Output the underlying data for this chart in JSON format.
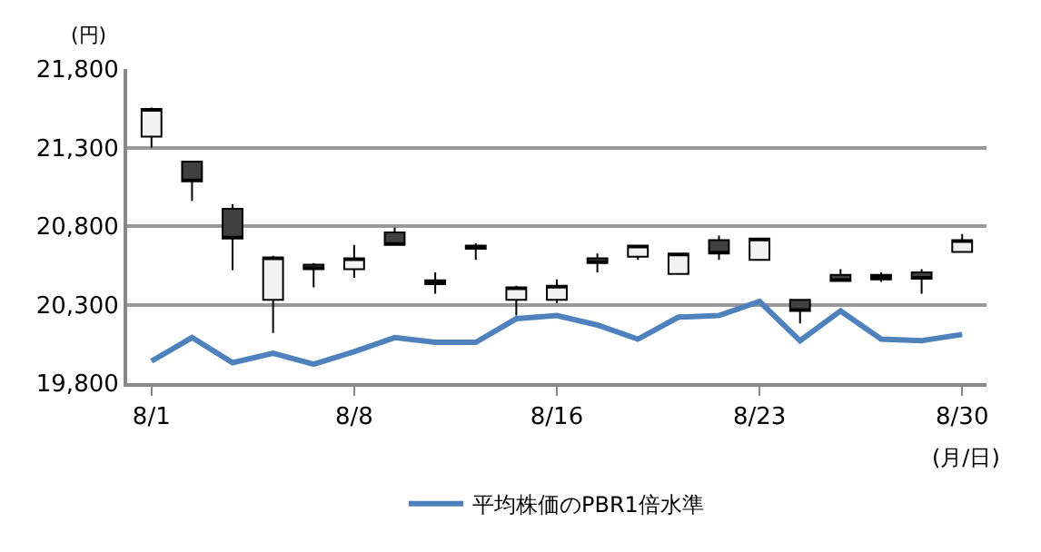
{
  "chart_data": {
    "type": "candlestick",
    "ylabel": "(円)",
    "xlabel": "(月/日)",
    "categories": [
      "8/1",
      null,
      null,
      null,
      null,
      "8/8",
      null,
      null,
      null,
      null,
      "8/16",
      null,
      null,
      null,
      null,
      "8/23",
      null,
      null,
      null,
      null,
      "8/30"
    ],
    "series": [
      {
        "type": "line",
        "name": "平均株価のPBR1倍水準",
        "color": "#4f81bd",
        "values": [
          19940,
          20090,
          19930,
          19990,
          19920,
          20000,
          20090,
          20060,
          20060,
          20210,
          20230,
          20170,
          20080,
          20220,
          20230,
          20320,
          20070,
          20260,
          20080,
          20070,
          20110
        ]
      },
      {
        "colors": [
          "#f2f2f2",
          "#404040",
          "#404040",
          "#f2f2f2",
          "#404040",
          "#f2f2f2",
          "#404040",
          "#404040",
          "#404040",
          "#f2f2f2",
          "#f2f2f2",
          "#404040",
          "#f2f2f2",
          "#f2f2f2",
          "#404040",
          "#f2f2f2",
          "#404040",
          "#404040",
          "#000000",
          "#404040",
          "#f2f2f2"
        ],
        "ohlc": [
          [
            21370,
            21555,
            21300,
            21545
          ],
          [
            21210,
            21210,
            20960,
            21085
          ],
          [
            20910,
            20940,
            20520,
            20720
          ],
          [
            20330,
            20610,
            20120,
            20600
          ],
          [
            20555,
            20565,
            20410,
            20525
          ],
          [
            20525,
            20680,
            20470,
            20595
          ],
          [
            20760,
            20790,
            20680,
            20680
          ],
          [
            20455,
            20505,
            20370,
            20430
          ],
          [
            20675,
            20690,
            20585,
            20655
          ],
          [
            20330,
            20420,
            20230,
            20410
          ],
          [
            20330,
            20460,
            20310,
            20420
          ],
          [
            20595,
            20625,
            20505,
            20565
          ],
          [
            20605,
            20675,
            20585,
            20675
          ],
          [
            20495,
            20625,
            20495,
            20625
          ],
          [
            20710,
            20740,
            20585,
            20625
          ],
          [
            20585,
            20720,
            20585,
            20720
          ],
          [
            20330,
            20330,
            20180,
            20260
          ],
          [
            20490,
            20525,
            20450,
            20450
          ],
          [
            20490,
            20505,
            20445,
            20460
          ],
          [
            20505,
            20525,
            20370,
            20465
          ],
          [
            20635,
            20750,
            20635,
            20710
          ]
        ]
      }
    ],
    "ylim": [
      19800,
      21800
    ],
    "yticks": [
      {
        "value": 19800,
        "label": "19,800"
      },
      {
        "value": 20300,
        "label": "20,300"
      },
      {
        "value": 20800,
        "label": "20,800"
      },
      {
        "value": 21300,
        "label": "21,300"
      },
      {
        "value": 21800,
        "label": "21,800"
      }
    ],
    "grid": "y",
    "legend": "bottom"
  }
}
